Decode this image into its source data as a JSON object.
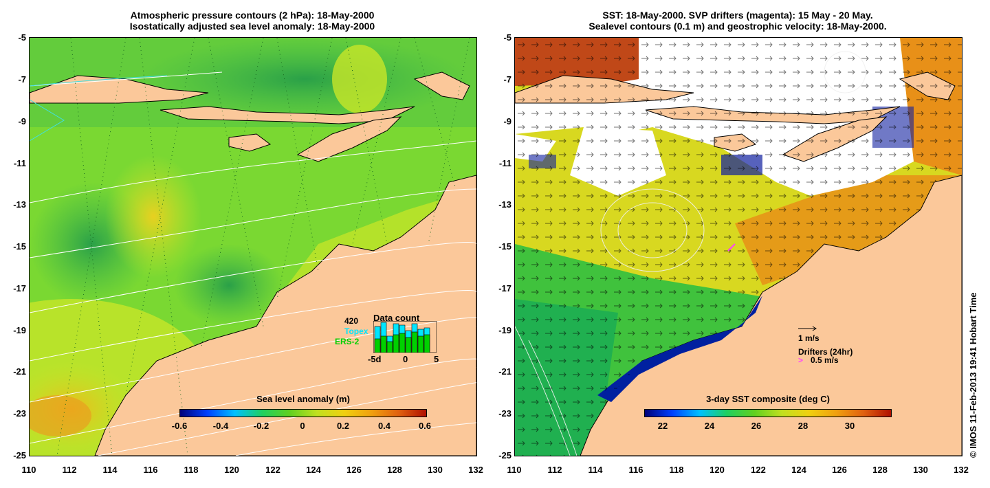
{
  "left": {
    "title_line1": "Atmospheric pressure contours (2 hPa): 18-May-2000",
    "title_line2": "Isostatically adjusted sea level anomaly: 18-May-2000",
    "colorbar_label": "Sea level anomaly (m)",
    "colorbar_ticks": [
      "-0.6",
      "-0.4",
      "-0.2",
      "0",
      "0.2",
      "0.4",
      "0.6"
    ],
    "colors": {
      "ocean_base": "#7ad832",
      "ocean_dark": "#3cb84a",
      "ocean_yellow": "#c8e628",
      "ocean_orange": "#f0b818",
      "land": "#fbc89a"
    },
    "inset": {
      "count_label": "420",
      "topex_label": "Topex",
      "ers_label": "ERS-2",
      "title": "Data count",
      "ticks": [
        "-5d",
        "0",
        "5"
      ],
      "topex_color": "#00e6ff",
      "ers_color": "#00d000"
    }
  },
  "right": {
    "title_line1": "SST: 18-May-2000. SVP drifters (magenta): 15 May - 20 May.",
    "title_line2": "Sealevel contours (0.1 m) and geostrophic velocity: 18-May-2000.",
    "colorbar_label": "3-day SST composite (deg C)",
    "colorbar_ticks": [
      "22",
      "24",
      "26",
      "28",
      "30"
    ],
    "scale_label": "1 m/s",
    "drifters_label": "Drifters (24hr)",
    "drifters_scale": "0.5 m/s",
    "colors": {
      "land": "#fbc89a",
      "cloud": "#ffffff",
      "sst_warm": "#e89018",
      "sst_mid": "#d8d820",
      "sst_cool": "#30c040"
    }
  },
  "axes": {
    "yticks": [
      "-5",
      "-7",
      "-9",
      "-11",
      "-13",
      "-15",
      "-17",
      "-19",
      "-21",
      "-23",
      "-25"
    ],
    "xticks": [
      "110",
      "112",
      "114",
      "116",
      "118",
      "120",
      "122",
      "124",
      "126",
      "128",
      "130",
      "132"
    ]
  },
  "copyright": "© IMOS 11-Feb-2013 19:41 Hobart Time"
}
